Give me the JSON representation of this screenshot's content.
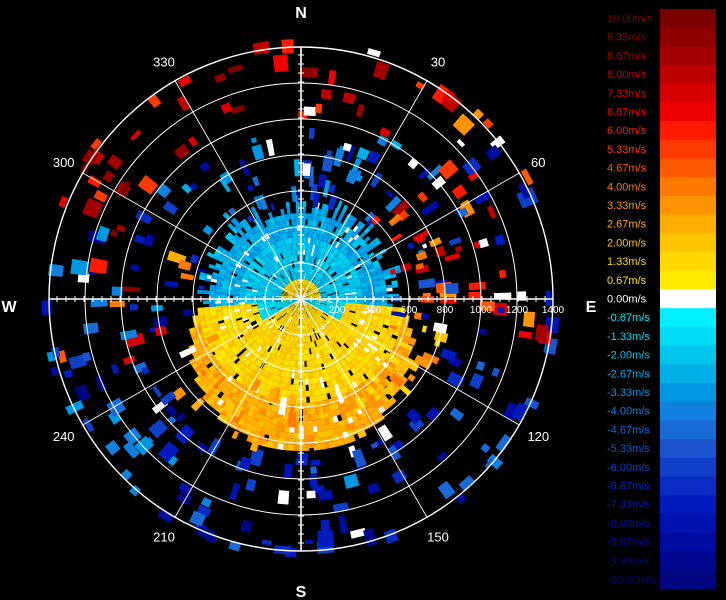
{
  "cardinals": {
    "n": "N",
    "e": "E",
    "s": "S",
    "w": "W"
  },
  "azimuths": [
    {
      "deg": 30,
      "label": "30"
    },
    {
      "deg": 60,
      "label": "60"
    },
    {
      "deg": 120,
      "label": "120"
    },
    {
      "deg": 150,
      "label": "150"
    },
    {
      "deg": 210,
      "label": "210"
    },
    {
      "deg": 240,
      "label": "240"
    },
    {
      "deg": 300,
      "label": "300"
    },
    {
      "deg": 330,
      "label": "330"
    }
  ],
  "range_labels": [
    "200",
    "400",
    "600",
    "800",
    "1000",
    "1200",
    "1400"
  ],
  "legend": [
    {
      "label": "10.00m/s",
      "color": "#7a0000"
    },
    {
      "label": "9.33m/s",
      "color": "#8e0000"
    },
    {
      "label": "8.67m/s",
      "color": "#a30000"
    },
    {
      "label": "8.00m/s",
      "color": "#bf0000"
    },
    {
      "label": "7.33m/s",
      "color": "#d60000"
    },
    {
      "label": "6.67m/s",
      "color": "#ee0000"
    },
    {
      "label": "6.00m/s",
      "color": "#ff1a00"
    },
    {
      "label": "5.33m/s",
      "color": "#ff3a00"
    },
    {
      "label": "4.67m/s",
      "color": "#ff5a00"
    },
    {
      "label": "4.00m/s",
      "color": "#ff7800"
    },
    {
      "label": "3.33m/s",
      "color": "#ff9400"
    },
    {
      "label": "2.67m/s",
      "color": "#ffae00"
    },
    {
      "label": "2.00m/s",
      "color": "#ffc400"
    },
    {
      "label": "1.33m/s",
      "color": "#ffd800"
    },
    {
      "label": "0.67m/s",
      "color": "#ffea00"
    },
    {
      "label": "0.00m/s",
      "color": "#ffffff"
    },
    {
      "label": "-0.67m/s",
      "color": "#00f0ff"
    },
    {
      "label": "-1.33m/s",
      "color": "#00dcf4"
    },
    {
      "label": "-2.00m/s",
      "color": "#00c6ee"
    },
    {
      "label": "-2.67m/s",
      "color": "#00aee8"
    },
    {
      "label": "-3.33m/s",
      "color": "#0096e2"
    },
    {
      "label": "-4.00m/s",
      "color": "#1080de"
    },
    {
      "label": "-4.67m/s",
      "color": "#1a6ad6"
    },
    {
      "label": "-5.33m/s",
      "color": "#1a54ce"
    },
    {
      "label": "-6.00m/s",
      "color": "#1040c8"
    },
    {
      "label": "-6.67m/s",
      "color": "#0a2cc4"
    },
    {
      "label": "-7.33m/s",
      "color": "#001cbe"
    },
    {
      "label": "-8.00m/s",
      "color": "#0012b0"
    },
    {
      "label": "-8.67m/s",
      "color": "#000ca0"
    },
    {
      "label": "-9.33m/s",
      "color": "#000890"
    },
    {
      "label": "-10.00m/s",
      "color": "#000680"
    }
  ]
}
